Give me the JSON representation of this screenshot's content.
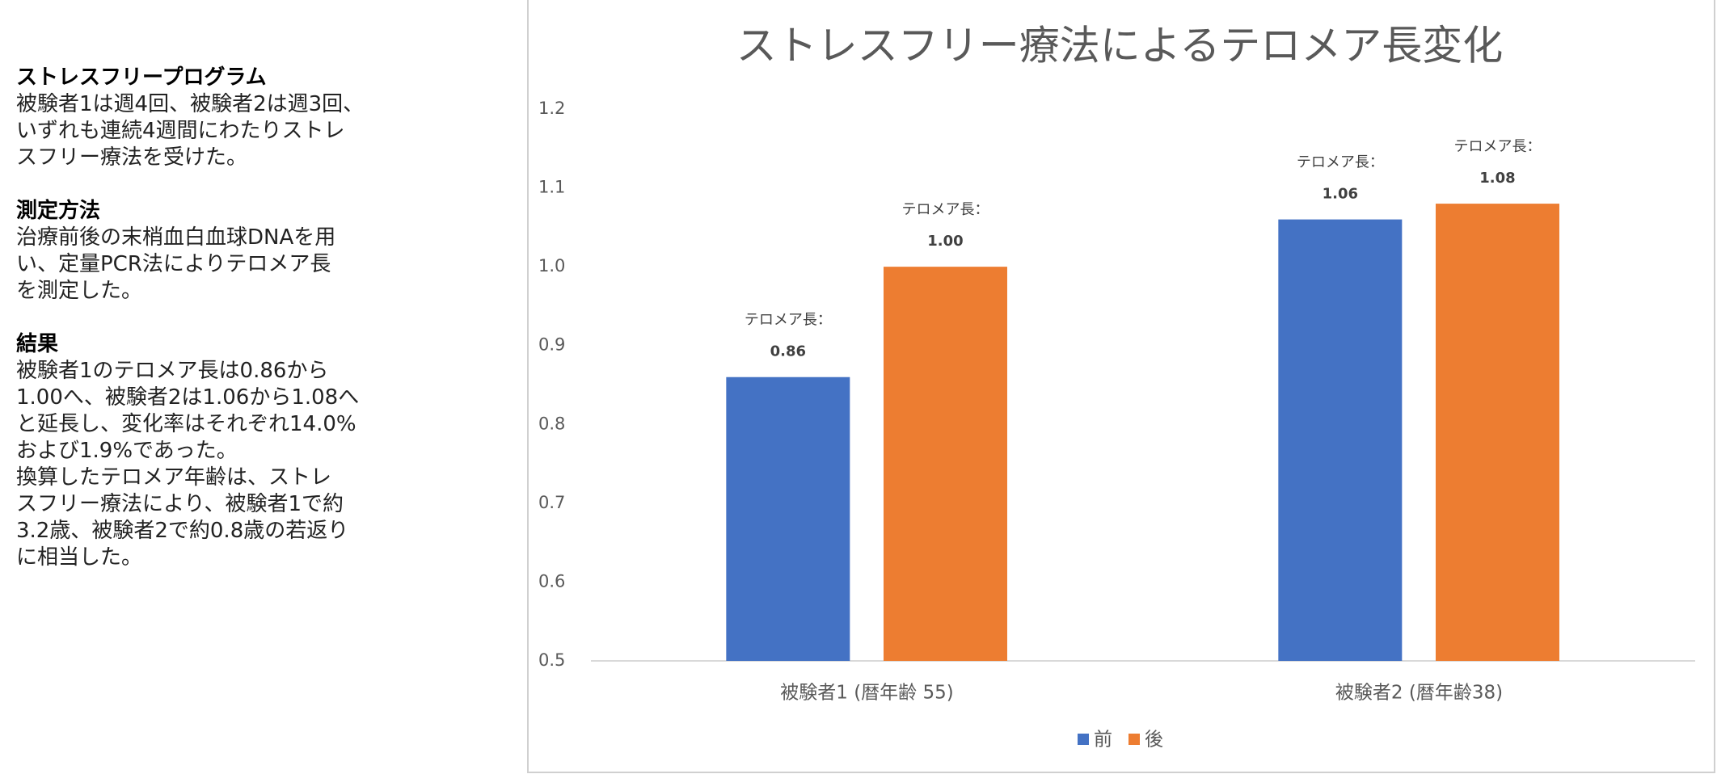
{
  "notes": {
    "sections": [
      {
        "heading": "ストレスフリープログラム",
        "lines": [
          "被験者1は週4回、被験者2は週3回、",
          "いずれも連続4週間にわたりストレ",
          "スフリー療法を受けた。"
        ]
      },
      {
        "heading": "測定方法",
        "lines": [
          "治療前後の末梢血白血球DNAを用",
          "い、定量PCR法によりテロメア長",
          "を測定した。"
        ]
      },
      {
        "heading": "結果",
        "lines": [
          "被験者1のテロメア長は0.86から",
          "1.00へ、被験者2は1.06から1.08へ",
          "と延長し、変化率はそれぞれ14.0%",
          "および1.9%であった。",
          "換算したテロメア年齢は、ストレ",
          "スフリー療法により、被験者1で約",
          "3.2歳、被験者2で約0.8歳の若返り",
          "に相当した。"
        ]
      }
    ]
  },
  "chart_data": {
    "type": "bar",
    "title": "ストレスフリー療法によるテロメア長変化",
    "categories": [
      "被験者1 (暦年齢 55)",
      "被験者2 (暦年齢38)"
    ],
    "value_label_prefix": "テロメア長：",
    "series": [
      {
        "name": "前",
        "color": "#4472c4",
        "values": [
          0.86,
          1.06
        ],
        "value_labels": [
          "0.86",
          "1.06"
        ]
      },
      {
        "name": "後",
        "color": "#ed7d31",
        "values": [
          1.0,
          1.08
        ],
        "value_labels": [
          "1.00",
          "1.08"
        ]
      }
    ],
    "ylim": [
      0.5,
      1.2
    ],
    "yticks": [
      0.5,
      0.6,
      0.7,
      0.8,
      0.9,
      {
        "value": 1,
        "label": "1.0"
      },
      1.1,
      1.2
    ],
    "grid": false,
    "legend": "bottom"
  }
}
